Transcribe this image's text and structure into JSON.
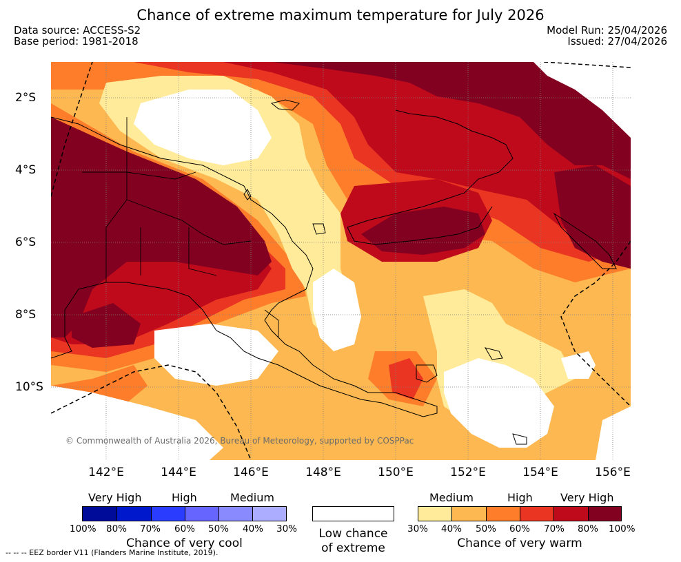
{
  "title": "Chance of extreme maximum temperature for July 2026",
  "meta": {
    "data_source": "Data source: ACCESS-S2",
    "base_period": "Base period: 1981-2018",
    "model_run": "Model Run: 25/04/2026",
    "issued": "Issued: 27/04/2026"
  },
  "axes": {
    "lat_ticks": [
      "2°S",
      "4°S",
      "6°S",
      "8°S",
      "10°S"
    ],
    "lon_ticks": [
      "142°E",
      "144°E",
      "146°E",
      "148°E",
      "150°E",
      "152°E",
      "154°E",
      "156°E"
    ]
  },
  "copyright": "© Commonwealth of Australia 2026, Bureau of Meteorology, supported by COSPPac",
  "legend": {
    "cool": {
      "categories": [
        "Very High",
        "High",
        "Medium"
      ],
      "percent_labels": [
        "100%",
        "80%",
        "70%",
        "60%",
        "50%",
        "40%",
        "30%"
      ],
      "colors": [
        "#000b99",
        "#0018cc",
        "#2a3dff",
        "#6666ff",
        "#8a8aff",
        "#adadff"
      ],
      "caption": "Chance of very cool"
    },
    "neutral": {
      "caption_line1": "Low chance",
      "caption_line2": "of extreme",
      "color": "#ffffff"
    },
    "warm": {
      "categories": [
        "Medium",
        "High",
        "Very High"
      ],
      "percent_labels": [
        "30%",
        "40%",
        "50%",
        "60%",
        "70%",
        "80%",
        "100%"
      ],
      "colors": [
        "#ffeb99",
        "#fdb851",
        "#fd7d2b",
        "#e93521",
        "#bf0a1c",
        "#820020"
      ],
      "caption": "Chance of very warm"
    }
  },
  "footnote": "--  --  -- EEZ border V11 (Flanders Marine Institute, 2019)."
}
